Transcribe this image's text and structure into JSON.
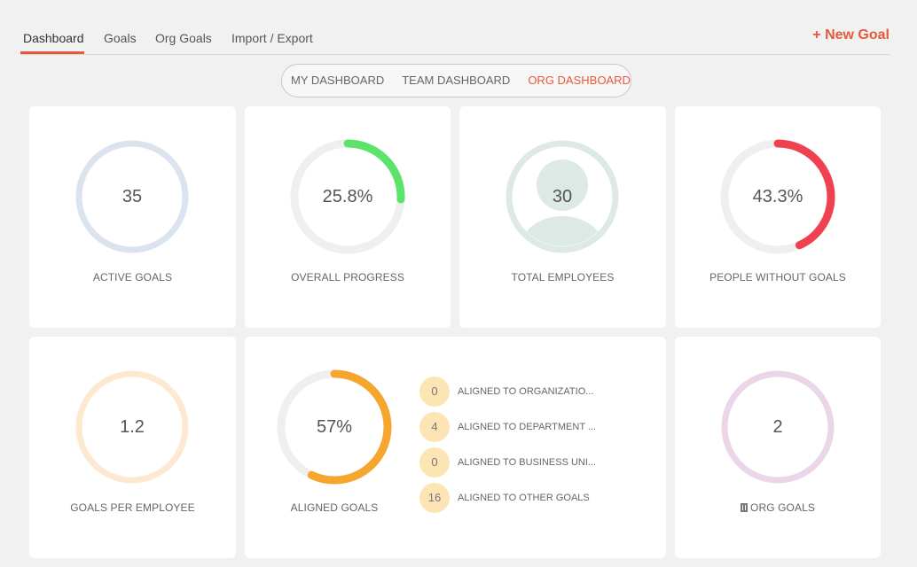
{
  "nav": {
    "tabs": [
      "Dashboard",
      "Goals",
      "Org Goals",
      "Import / Export"
    ],
    "active_tab": "Dashboard",
    "new_goal": "+ New Goal"
  },
  "switcher": {
    "items": [
      "MY DASHBOARD",
      "TEAM DASHBOARD",
      "ORG DASHBOARD"
    ],
    "active": "ORG DASHBOARD"
  },
  "cards": {
    "active_goals": {
      "value": "35",
      "label": "ACTIVE GOALS",
      "ring_color": "#dbe4ee"
    },
    "overall_progress": {
      "value": "25.8%",
      "label": "OVERALL PROGRESS",
      "percent": 25.8,
      "color": "#5be36a"
    },
    "total_employees": {
      "value": "30",
      "label": "TOTAL EMPLOYEES",
      "ring_color": "#dce9e4"
    },
    "people_without_goals": {
      "value": "43.3%",
      "label": "PEOPLE WITHOUT GOALS",
      "percent": 43.3,
      "color": "#ef4150"
    },
    "goals_per_employee": {
      "value": "1.2",
      "label": "GOALS PER EMPLOYEE",
      "ring_color": "#fde9d2"
    },
    "aligned_goals": {
      "value": "57%",
      "label": "ALIGNED GOALS",
      "percent": 57,
      "color": "#f6a62e",
      "breakdown": [
        {
          "count": "0",
          "label": "ALIGNED TO ORGANIZATIO..."
        },
        {
          "count": "4",
          "label": "ALIGNED TO DEPARTMENT ..."
        },
        {
          "count": "0",
          "label": "ALIGNED TO BUSINESS UNI..."
        },
        {
          "count": "16",
          "label": "ALIGNED TO OTHER GOALS"
        }
      ]
    },
    "org_goals": {
      "value": "2",
      "label": "ORG GOALS",
      "ring_color": "#ead6e8",
      "icon": "building-icon"
    }
  },
  "colors": {
    "accent": "#e8593a",
    "track": "#efefef"
  }
}
